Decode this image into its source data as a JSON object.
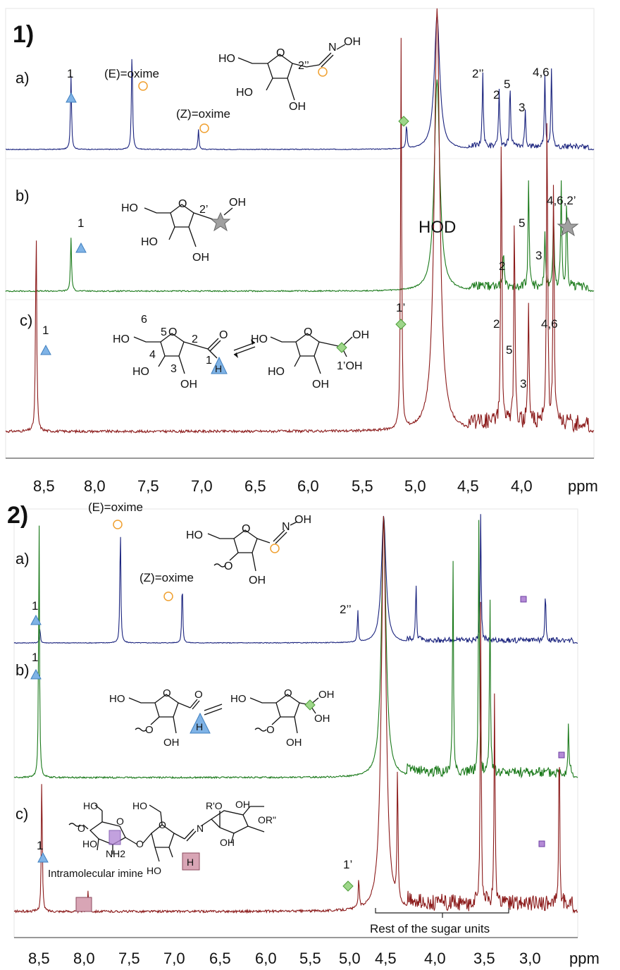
{
  "figure": {
    "panel1_label": "1)",
    "panel2_label": "2)",
    "x_unit": "ppm",
    "hod_label": "HOD",
    "panel1_ticks": [
      "8,5",
      "8,0",
      "7,5",
      "7,0",
      "6,5",
      "6,0",
      "5,5",
      "5,0",
      "4,5",
      "4,0"
    ],
    "panel2_ticks": [
      "8,5",
      "8,0",
      "7,5",
      "7,0",
      "6,5",
      "6,0",
      "5,5",
      "5,0",
      "4,5",
      "4,0",
      "3,5",
      "3,0"
    ],
    "rest_label": "Rest of the sugar units",
    "intramolecular_label": "Intramolecular imine"
  },
  "chart_data": [
    {
      "type": "line",
      "panel": "1)",
      "xlabel": "ppm",
      "xlim": [
        8.75,
        3.35
      ],
      "series": [
        {
          "name": "a)",
          "color": "#1a237e",
          "peaks": [
            [
              8.15,
              0.55
            ],
            [
              7.59,
              0.75
            ],
            [
              6.98,
              0.15
            ],
            [
              5.07,
              0.18
            ],
            [
              4.79,
              1.0
            ],
            [
              4.37,
              0.55
            ],
            [
              4.22,
              0.42
            ],
            [
              4.12,
              0.45
            ],
            [
              3.98,
              0.28
            ],
            [
              3.8,
              0.52
            ],
            [
              3.74,
              0.6
            ]
          ],
          "labels": [
            "1",
            "(E)=oxime",
            "(Z)=oxime",
            "2’’",
            "2",
            "5",
            "3",
            "4,6"
          ]
        },
        {
          "name": "b)",
          "color": "#1b7a1b",
          "peaks": [
            [
              8.15,
              0.25
            ],
            [
              4.79,
              1.0
            ],
            [
              4.18,
              0.18
            ],
            [
              3.95,
              0.5
            ],
            [
              3.8,
              0.25
            ],
            [
              3.72,
              0.35
            ],
            [
              3.65,
              0.48
            ],
            [
              3.6,
              0.4
            ]
          ],
          "labels": [
            "1",
            "2",
            "5",
            "3",
            "4,6,2’"
          ]
        },
        {
          "name": "c)",
          "color": "#8b1a1a",
          "peaks": [
            [
              8.47,
              0.5
            ],
            [
              5.12,
              0.92
            ],
            [
              4.79,
              1.0
            ],
            [
              4.2,
              0.72
            ],
            [
              4.08,
              0.5
            ],
            [
              3.95,
              0.3
            ],
            [
              3.78,
              0.78
            ],
            [
              3.72,
              0.6
            ]
          ],
          "labels": [
            "1",
            "1’",
            "2",
            "5",
            "3",
            "4,6"
          ]
        }
      ]
    },
    {
      "type": "line",
      "panel": "2)",
      "xlabel": "ppm",
      "xlim": [
        8.75,
        2.65
      ],
      "series": [
        {
          "name": "a)",
          "color": "#1a237e",
          "peaks": [
            [
              8.47,
              0.12
            ],
            [
              7.6,
              0.95
            ],
            [
              6.93,
              0.5
            ],
            [
              5.03,
              0.25
            ],
            [
              4.75,
              1.0
            ],
            [
              4.4,
              0.45
            ],
            [
              3.7,
              1.0
            ],
            [
              3.0,
              0.4
            ]
          ],
          "labels": [
            "1",
            "(E)=oxime",
            "(Z)=oxime",
            "2’’"
          ]
        },
        {
          "name": "b)",
          "color": "#1b7a1b",
          "peaks": [
            [
              8.48,
              1.0
            ],
            [
              4.75,
              1.0
            ],
            [
              4.0,
              0.85
            ],
            [
              3.72,
              1.0
            ],
            [
              3.6,
              0.7
            ],
            [
              2.75,
              0.2
            ]
          ],
          "labels": [
            "1"
          ]
        },
        {
          "name": "c)",
          "color": "#8b1a1a",
          "peaks": [
            [
              8.45,
              0.35
            ],
            [
              7.95,
              0.05
            ],
            [
              5.02,
              0.08
            ],
            [
              4.75,
              1.0
            ],
            [
              4.6,
              0.35
            ],
            [
              3.7,
              0.75
            ],
            [
              3.55,
              0.55
            ],
            [
              2.85,
              0.45
            ]
          ],
          "labels": [
            "1",
            "1’"
          ]
        }
      ]
    }
  ],
  "annotations": {
    "p1a": {
      "trace": "a)",
      "num1": "1",
      "e_oxime": "(E)=oxime",
      "z_oxime": "(Z)=oxime",
      "h2pp": "2’’",
      "h2": "2",
      "h5": "5",
      "h3": "3",
      "h46": "4,6"
    },
    "p1b": {
      "trace": "b)",
      "num1": "1",
      "h2": "2",
      "h5": "5",
      "h3": "3",
      "h462": "4,6,2’"
    },
    "p1c": {
      "trace": "c)",
      "num1": "1",
      "h1p": "1’",
      "h2": "2",
      "h5": "5",
      "h3": "3",
      "h46": "4,6"
    },
    "p2a": {
      "trace": "a)",
      "num1": "1",
      "e_oxime": "(E)=oxime",
      "z_oxime": "(Z)=oxime",
      "h2pp": "2’’"
    },
    "p2b": {
      "trace": "b)",
      "num1": "1"
    },
    "p2c": {
      "trace": "c)",
      "num1": "1",
      "h1p": "1’"
    }
  },
  "structures": {
    "ho": "HO",
    "oh": "OH",
    "o": "O",
    "n": "N",
    "h": "H",
    "nh2": "NH2",
    "two_pp": "2’’",
    "two_p": "2’",
    "one_p_oh": "1’OH",
    "ro1": "R'O",
    "ro2": "OR\"",
    "num6": "6",
    "num5": "5",
    "num4": "4",
    "num3": "3",
    "num2": "2",
    "num1": "1"
  },
  "colors": {
    "blue": "#1a237e",
    "green": "#1b7a1b",
    "red": "#8b1a1a",
    "marker_blue": "#7fb3e6",
    "marker_green": "#9ed68a",
    "marker_orange": "#f0a030",
    "marker_star": "#a0a0a0",
    "marker_purple": "#b48ad6",
    "marker_pink": "#d8a5b5"
  }
}
